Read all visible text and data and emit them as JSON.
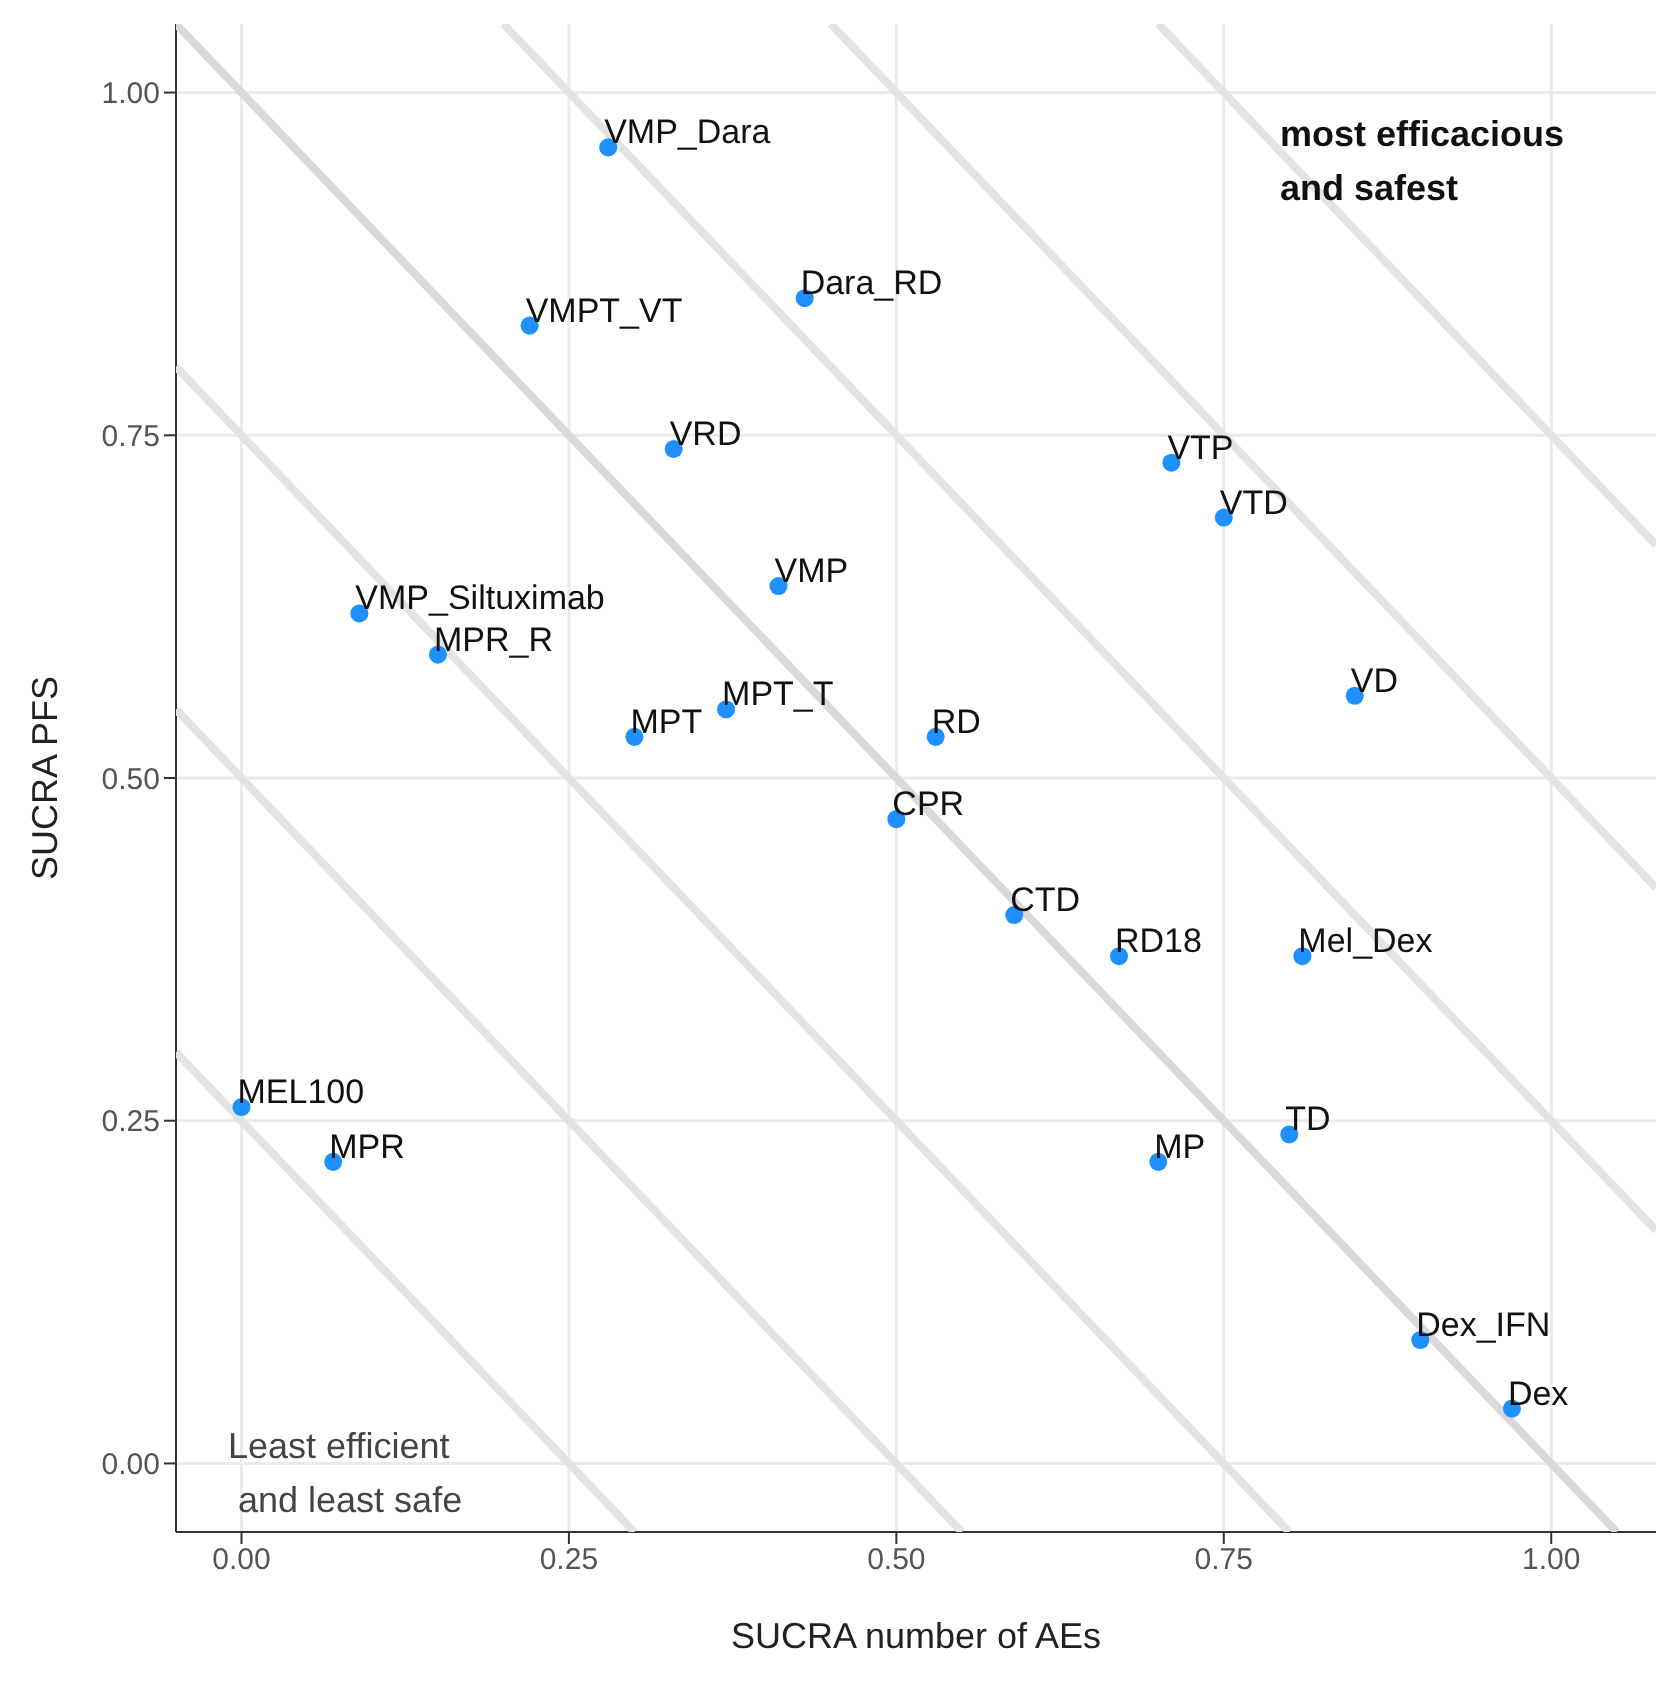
{
  "chart_data": {
    "type": "scatter",
    "xlabel": "SUCRA number of AEs",
    "ylabel": "SUCRA PFS",
    "xlim": [
      -0.05,
      1.08
    ],
    "ylim": [
      -0.05,
      1.05
    ],
    "xticks": [
      {
        "value": 0,
        "label": "0.00"
      },
      {
        "value": 0.25,
        "label": "0.25"
      },
      {
        "value": 0.5,
        "label": "0.50"
      },
      {
        "value": 0.75,
        "label": "0.75"
      },
      {
        "value": 1,
        "label": "1.00"
      }
    ],
    "yticks": [
      {
        "value": 0,
        "label": "0.00"
      },
      {
        "value": 0.25,
        "label": "0.25"
      },
      {
        "value": 0.5,
        "label": "0.50"
      },
      {
        "value": 0.75,
        "label": "0.75"
      },
      {
        "value": 1,
        "label": "1.00"
      }
    ],
    "grid": true,
    "marker": "circle",
    "annotations": [
      "most efficacious\nand safest",
      "Least efficient\n and least safe"
    ],
    "series": [
      {
        "type": "line",
        "marker": "none",
        "color": "#e3e3e3",
        "x": [
          -0.05,
          0.3
        ],
        "values": [
          0.3,
          -0.05
        ]
      },
      {
        "type": "line",
        "marker": "none",
        "color": "#e3e3e3",
        "x": [
          -0.05,
          0.55
        ],
        "values": [
          0.55,
          -0.05
        ]
      },
      {
        "type": "line",
        "marker": "none",
        "color": "#e3e3e3",
        "x": [
          -0.05,
          0.8
        ],
        "values": [
          0.8,
          -0.05
        ]
      },
      {
        "type": "line",
        "marker": "none",
        "color": "#d9d9d9",
        "x": [
          -0.05,
          1.05
        ],
        "values": [
          1.05,
          -0.05
        ]
      },
      {
        "type": "line",
        "marker": "none",
        "color": "#e3e3e3",
        "x": [
          0.2,
          1.08
        ],
        "values": [
          1.05,
          0.17
        ]
      },
      {
        "type": "line",
        "marker": "none",
        "color": "#e3e3e3",
        "x": [
          0.45,
          1.08
        ],
        "values": [
          1.05,
          0.42
        ]
      },
      {
        "type": "line",
        "marker": "none",
        "color": "#e3e3e3",
        "x": [
          0.7,
          1.08
        ],
        "values": [
          1.05,
          0.67
        ]
      },
      {
        "name": "VMP_Dara",
        "color": "#1e90ff",
        "x": [
          0.28
        ],
        "values": [
          0.96
        ]
      },
      {
        "name": "VMPT_VT",
        "color": "#1e90ff",
        "x": [
          0.22
        ],
        "values": [
          0.83
        ]
      },
      {
        "name": "Dara_RD",
        "color": "#1e90ff",
        "x": [
          0.43
        ],
        "values": [
          0.85
        ]
      },
      {
        "name": "VRD",
        "color": "#1e90ff",
        "x": [
          0.33
        ],
        "values": [
          0.74
        ]
      },
      {
        "name": "VMP",
        "color": "#1e90ff",
        "x": [
          0.41
        ],
        "values": [
          0.64
        ]
      },
      {
        "name": "VMP_Siltuximab",
        "color": "#1e90ff",
        "x": [
          0.09
        ],
        "values": [
          0.62
        ]
      },
      {
        "name": "MPR_R",
        "color": "#1e90ff",
        "x": [
          0.15
        ],
        "values": [
          0.59
        ]
      },
      {
        "name": "MPT",
        "color": "#1e90ff",
        "x": [
          0.3
        ],
        "values": [
          0.53
        ]
      },
      {
        "name": "MPT_T",
        "color": "#1e90ff",
        "x": [
          0.37
        ],
        "values": [
          0.55
        ]
      },
      {
        "name": "VTP",
        "color": "#1e90ff",
        "x": [
          0.71
        ],
        "values": [
          0.73
        ]
      },
      {
        "name": "VTD",
        "color": "#1e90ff",
        "x": [
          0.75
        ],
        "values": [
          0.69
        ]
      },
      {
        "name": "VD",
        "color": "#1e90ff",
        "x": [
          0.85
        ],
        "values": [
          0.56
        ]
      },
      {
        "name": "RD",
        "color": "#1e90ff",
        "x": [
          0.53
        ],
        "values": [
          0.53
        ]
      },
      {
        "name": "CPR",
        "color": "#1e90ff",
        "x": [
          0.5
        ],
        "values": [
          0.47
        ]
      },
      {
        "name": "CTD",
        "color": "#1e90ff",
        "x": [
          0.59
        ],
        "values": [
          0.4
        ]
      },
      {
        "name": "RD18",
        "color": "#1e90ff",
        "x": [
          0.67
        ],
        "values": [
          0.37
        ]
      },
      {
        "name": "Mel_Dex",
        "color": "#1e90ff",
        "x": [
          0.81
        ],
        "values": [
          0.37
        ]
      },
      {
        "name": "MP",
        "color": "#1e90ff",
        "x": [
          0.7
        ],
        "values": [
          0.22
        ]
      },
      {
        "name": "TD",
        "color": "#1e90ff",
        "x": [
          0.8
        ],
        "values": [
          0.24
        ]
      },
      {
        "name": "Dex_IFN",
        "color": "#1e90ff",
        "x": [
          0.9
        ],
        "values": [
          0.09
        ]
      },
      {
        "name": "Dex",
        "color": "#1e90ff",
        "x": [
          0.97
        ],
        "values": [
          0.04
        ]
      },
      {
        "name": "MEL100",
        "color": "#1e90ff",
        "x": [
          0.0
        ],
        "values": [
          0.26
        ]
      },
      {
        "name": "MPR",
        "color": "#1e90ff",
        "x": [
          0.07
        ],
        "values": [
          0.22
        ]
      }
    ]
  }
}
